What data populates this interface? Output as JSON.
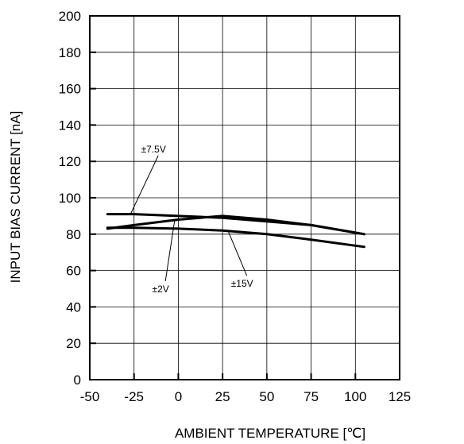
{
  "chart_data": {
    "type": "line",
    "title": "",
    "xlabel": "AMBIENT TEMPERATURE [℃]",
    "ylabel": "INPUT BIAS CURRENT  [nA]",
    "xlim": [
      -50,
      125
    ],
    "ylim": [
      0,
      200
    ],
    "xticks": [
      -50,
      -25,
      0,
      25,
      50,
      75,
      100,
      125
    ],
    "yticks": [
      0,
      20,
      40,
      60,
      80,
      100,
      120,
      140,
      160,
      180,
      200
    ],
    "grid": true,
    "series": [
      {
        "name": "±7.5V",
        "x": [
          -40,
          -25,
          0,
          25,
          50,
          75,
          105
        ],
        "y": [
          91,
          91,
          90,
          89,
          87,
          85,
          80
        ],
        "color": "#000000"
      },
      {
        "name": "±2V",
        "x": [
          -40,
          -25,
          0,
          25,
          50,
          75,
          105
        ],
        "y": [
          83,
          85,
          88,
          90,
          88,
          85,
          80
        ],
        "color": "#000000"
      },
      {
        "name": "±15V",
        "x": [
          -40,
          -25,
          0,
          25,
          50,
          75,
          105
        ],
        "y": [
          83.5,
          83.5,
          83,
          82,
          80,
          77,
          73
        ],
        "color": "#000000"
      }
    ],
    "annotations": [
      {
        "text": "±7.5V",
        "series": "±7.5V",
        "x": -14,
        "y": 125,
        "target_x": -27,
        "target_y": 91
      },
      {
        "text": "±2V",
        "series": "±2V",
        "x": -10,
        "y": 48,
        "target_x": -2,
        "target_y": 88
      },
      {
        "text": "±15V",
        "series": "±15V",
        "x": 36,
        "y": 51,
        "target_x": 28,
        "target_y": 82
      }
    ]
  }
}
